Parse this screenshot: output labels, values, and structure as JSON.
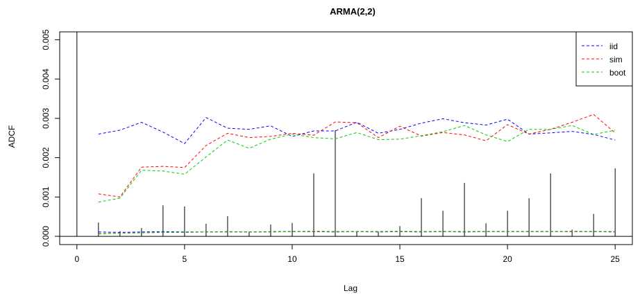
{
  "chart_data": {
    "type": "line",
    "title": "ARMA(2,2)",
    "xlabel": "Lag",
    "ylabel": "ADCF",
    "xlim": [
      -0.8,
      25.8
    ],
    "ylim": [
      -0.00021,
      0.0052
    ],
    "x_ticks": [
      "0",
      "5",
      "10",
      "15",
      "20",
      "25"
    ],
    "y_ticks": [
      "0.000",
      "0.001",
      "0.002",
      "0.003",
      "0.004",
      "0.005"
    ],
    "grid": false,
    "legend_position": "top-right",
    "bars": {
      "lags": [
        0,
        1,
        2,
        3,
        4,
        5,
        6,
        7,
        8,
        9,
        10,
        11,
        12,
        13,
        14,
        15,
        16,
        17,
        18,
        19,
        20,
        21,
        22,
        23,
        24,
        25
      ],
      "values": [
        0.0052,
        0.00035,
        0.00013,
        0.00021,
        0.00079,
        0.00076,
        0.00032,
        0.00051,
        0.00012,
        0.0003,
        0.00034,
        0.0016,
        0.0027,
        0.00013,
        0.00012,
        0.00026,
        0.00097,
        0.00065,
        0.00136,
        0.00033,
        0.00065,
        0.00097,
        0.0016,
        0.00017,
        0.00057,
        0.00173
      ]
    },
    "series": [
      {
        "name": "iid",
        "color": "#0000ff",
        "x": [
          1,
          2,
          3,
          4,
          5,
          6,
          7,
          8,
          9,
          10,
          11,
          12,
          13,
          14,
          15,
          16,
          17,
          18,
          19,
          20,
          21,
          22,
          23,
          24,
          25
        ],
        "upper": [
          0.0026,
          0.0027,
          0.0029,
          0.00265,
          0.00236,
          0.00302,
          0.00275,
          0.00272,
          0.00281,
          0.00254,
          0.00268,
          0.00268,
          0.0029,
          0.00262,
          0.00272,
          0.00288,
          0.00299,
          0.00289,
          0.00283,
          0.00298,
          0.0026,
          0.00263,
          0.00267,
          0.00259,
          0.00245
        ],
        "lower": [
          0.00011,
          0.0001,
          0.00011,
          0.00012,
          0.00011,
          0.00011,
          0.00012,
          0.00011,
          0.00012,
          0.00012,
          0.00012,
          0.00011,
          0.00012,
          0.00011,
          0.00012,
          0.00011,
          0.00012,
          0.00011,
          0.00012,
          0.00012,
          0.00012,
          0.00012,
          0.00012,
          0.00012,
          0.00011
        ]
      },
      {
        "name": "sim",
        "color": "#ff0000",
        "x": [
          1,
          2,
          3,
          4,
          5,
          6,
          7,
          8,
          9,
          10,
          11,
          12,
          13,
          14,
          15,
          16,
          17,
          18,
          19,
          20,
          21,
          22,
          23,
          24,
          25
        ],
        "upper": [
          0.00108,
          0.001,
          0.00176,
          0.00178,
          0.00175,
          0.00231,
          0.00262,
          0.00251,
          0.00254,
          0.00262,
          0.00257,
          0.00291,
          0.00289,
          0.00251,
          0.0028,
          0.00255,
          0.00264,
          0.00258,
          0.00243,
          0.00284,
          0.0026,
          0.00272,
          0.0029,
          0.0031,
          0.00263
        ],
        "lower": [
          7e-05,
          8e-05,
          9e-05,
          0.0001,
          0.0001,
          0.00011,
          0.00011,
          0.00011,
          0.00011,
          0.00012,
          0.00012,
          0.00012,
          0.00012,
          0.00012,
          0.00012,
          0.00012,
          0.00012,
          0.00012,
          0.00012,
          0.00012,
          0.00012,
          0.00012,
          0.00012,
          0.00012,
          0.00012
        ]
      },
      {
        "name": "boot",
        "color": "#00cc00",
        "x": [
          1,
          2,
          3,
          4,
          5,
          6,
          7,
          8,
          9,
          10,
          11,
          12,
          13,
          14,
          15,
          16,
          17,
          18,
          19,
          20,
          21,
          22,
          23,
          24,
          25
        ],
        "upper": [
          0.00087,
          0.00097,
          0.00168,
          0.00166,
          0.00158,
          0.00202,
          0.00245,
          0.00224,
          0.00247,
          0.0026,
          0.00251,
          0.00248,
          0.00264,
          0.00246,
          0.00247,
          0.00256,
          0.00266,
          0.00282,
          0.00258,
          0.00241,
          0.00272,
          0.00272,
          0.00282,
          0.00259,
          0.0027
        ],
        "lower": [
          6e-05,
          8e-05,
          9e-05,
          0.0001,
          0.0001,
          0.00011,
          0.00011,
          0.00011,
          0.00011,
          0.00012,
          0.00013,
          0.00012,
          0.00012,
          0.00012,
          0.00013,
          0.00012,
          0.00012,
          0.00012,
          0.00012,
          0.00012,
          0.00012,
          0.00012,
          0.00013,
          0.00012,
          0.00012
        ]
      }
    ]
  }
}
